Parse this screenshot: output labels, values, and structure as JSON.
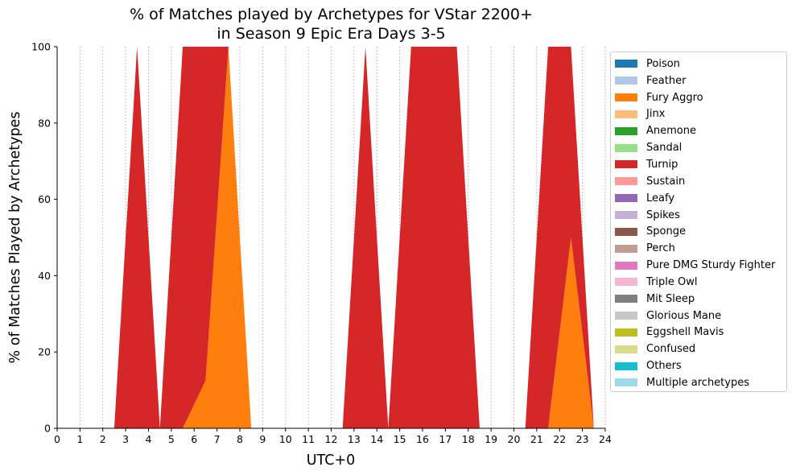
{
  "chart_data": {
    "type": "area",
    "title": "% of Matches played by Archetypes for VStar 2200+\nin Season 9 Epic Era Days 3-5",
    "xlabel": "UTC+0",
    "ylabel": "% of Matches Played by Archetypes",
    "xlim": [
      0,
      24
    ],
    "ylim": [
      0,
      100
    ],
    "x_ticks": [
      "0",
      "1",
      "2",
      "3",
      "4",
      "5",
      "6",
      "7",
      "8",
      "9",
      "10",
      "11",
      "12",
      "13",
      "14",
      "15",
      "16",
      "17",
      "18",
      "19",
      "20",
      "21",
      "22",
      "23",
      "24"
    ],
    "y_ticks": [
      "0",
      "20",
      "40",
      "60",
      "80",
      "100"
    ],
    "grid": "x",
    "legend_position": "right",
    "x": [
      0.5,
      1.5,
      2.5,
      3.5,
      4.5,
      5.5,
      6.5,
      7.5,
      8.5,
      9.5,
      10.5,
      11.5,
      12.5,
      13.5,
      14.5,
      15.5,
      16.5,
      17.5,
      18.5,
      19.5,
      20.5,
      21.5,
      22.5,
      23.5
    ],
    "series": [
      {
        "name": "Poison",
        "color": "#1f77b4",
        "values": [
          0,
          0,
          0,
          0,
          0,
          0,
          0,
          0,
          0,
          0,
          0,
          0,
          0,
          0,
          0,
          0,
          0,
          0,
          0,
          0,
          0,
          0,
          0,
          0
        ]
      },
      {
        "name": "Feather",
        "color": "#aec7e8",
        "values": [
          0,
          0,
          0,
          0,
          0,
          0,
          0,
          0,
          0,
          0,
          0,
          0,
          0,
          0,
          0,
          0,
          0,
          0,
          0,
          0,
          0,
          0,
          0,
          0
        ]
      },
      {
        "name": "Fury Aggro",
        "color": "#ff7f0e",
        "values": [
          0,
          0,
          0,
          0,
          0,
          0,
          12.5,
          100,
          0,
          0,
          0,
          0,
          0,
          0,
          0,
          0,
          0,
          0,
          0,
          0,
          0,
          0,
          50,
          0
        ]
      },
      {
        "name": "Jinx",
        "color": "#ffbb78",
        "values": [
          0,
          0,
          0,
          0,
          0,
          0,
          0,
          0,
          0,
          0,
          0,
          0,
          0,
          0,
          0,
          0,
          0,
          0,
          0,
          0,
          0,
          0,
          0,
          0
        ]
      },
      {
        "name": "Anemone",
        "color": "#2ca02c",
        "values": [
          0,
          0,
          0,
          0,
          0,
          0,
          0,
          0,
          0,
          0,
          0,
          0,
          0,
          0,
          0,
          0,
          0,
          0,
          0,
          0,
          0,
          0,
          0,
          0
        ]
      },
      {
        "name": "Sandal",
        "color": "#98df8a",
        "values": [
          0,
          0,
          0,
          0,
          0,
          0,
          0,
          0,
          0,
          0,
          0,
          0,
          0,
          0,
          0,
          0,
          0,
          0,
          0,
          0,
          0,
          0,
          0,
          0
        ]
      },
      {
        "name": "Turnip",
        "color": "#d62728",
        "values": [
          0,
          0,
          0,
          100,
          0,
          100,
          87.5,
          0,
          0,
          0,
          0,
          0,
          0,
          100,
          0,
          100,
          100,
          100,
          0,
          0,
          0,
          100,
          50,
          0
        ]
      },
      {
        "name": "Sustain",
        "color": "#ff9896",
        "values": [
          0,
          0,
          0,
          0,
          0,
          0,
          0,
          0,
          0,
          0,
          0,
          0,
          0,
          0,
          0,
          0,
          0,
          0,
          0,
          0,
          0,
          0,
          0,
          0
        ]
      },
      {
        "name": "Leafy",
        "color": "#9467bd",
        "values": [
          0,
          0,
          0,
          0,
          0,
          0,
          0,
          0,
          0,
          0,
          0,
          0,
          0,
          0,
          0,
          0,
          0,
          0,
          0,
          0,
          0,
          0,
          0,
          0
        ]
      },
      {
        "name": "Spikes",
        "color": "#c5b0d5",
        "values": [
          0,
          0,
          0,
          0,
          0,
          0,
          0,
          0,
          0,
          0,
          0,
          0,
          0,
          0,
          0,
          0,
          0,
          0,
          0,
          0,
          0,
          0,
          0,
          0
        ]
      },
      {
        "name": "Sponge",
        "color": "#8c564b",
        "values": [
          0,
          0,
          0,
          0,
          0,
          0,
          0,
          0,
          0,
          0,
          0,
          0,
          0,
          0,
          0,
          0,
          0,
          0,
          0,
          0,
          0,
          0,
          0,
          0
        ]
      },
      {
        "name": "Perch",
        "color": "#c49c94",
        "values": [
          0,
          0,
          0,
          0,
          0,
          0,
          0,
          0,
          0,
          0,
          0,
          0,
          0,
          0,
          0,
          0,
          0,
          0,
          0,
          0,
          0,
          0,
          0,
          0
        ]
      },
      {
        "name": "Pure DMG Sturdy Fighter",
        "color": "#e377c2",
        "values": [
          0,
          0,
          0,
          0,
          0,
          0,
          0,
          0,
          0,
          0,
          0,
          0,
          0,
          0,
          0,
          0,
          0,
          0,
          0,
          0,
          0,
          0,
          0,
          0
        ]
      },
      {
        "name": "Triple Owl",
        "color": "#f7b6d2",
        "values": [
          0,
          0,
          0,
          0,
          0,
          0,
          0,
          0,
          0,
          0,
          0,
          0,
          0,
          0,
          0,
          0,
          0,
          0,
          0,
          0,
          0,
          0,
          0,
          0
        ]
      },
      {
        "name": "Mit Sleep",
        "color": "#7f7f7f",
        "values": [
          0,
          0,
          0,
          0,
          0,
          0,
          0,
          0,
          0,
          0,
          0,
          0,
          0,
          0,
          0,
          0,
          0,
          0,
          0,
          0,
          0,
          0,
          0,
          0
        ]
      },
      {
        "name": "Glorious Mane",
        "color": "#c7c7c7",
        "values": [
          0,
          0,
          0,
          0,
          0,
          0,
          0,
          0,
          0,
          0,
          0,
          0,
          0,
          0,
          0,
          0,
          0,
          0,
          0,
          0,
          0,
          0,
          0,
          0
        ]
      },
      {
        "name": "Eggshell Mavis",
        "color": "#bcbd22",
        "values": [
          0,
          0,
          0,
          0,
          0,
          0,
          0,
          0,
          0,
          0,
          0,
          0,
          0,
          0,
          0,
          0,
          0,
          0,
          0,
          0,
          0,
          0,
          0,
          0
        ]
      },
      {
        "name": "Confused",
        "color": "#dbdb8d",
        "values": [
          0,
          0,
          0,
          0,
          0,
          0,
          0,
          0,
          0,
          0,
          0,
          0,
          0,
          0,
          0,
          0,
          0,
          0,
          0,
          0,
          0,
          0,
          0,
          0
        ]
      },
      {
        "name": "Others",
        "color": "#17becf",
        "values": [
          0,
          0,
          0,
          0,
          0,
          0,
          0,
          0,
          0,
          0,
          0,
          0,
          0,
          0,
          0,
          0,
          0,
          0,
          0,
          0,
          0,
          0,
          0,
          0
        ]
      },
      {
        "name": "Multiple archetypes",
        "color": "#9edae5",
        "values": [
          0,
          0,
          0,
          0,
          0,
          0,
          0,
          0,
          0,
          0,
          0,
          0,
          0,
          0,
          0,
          0,
          0,
          0,
          0,
          0,
          0,
          0,
          0,
          0
        ]
      }
    ]
  }
}
